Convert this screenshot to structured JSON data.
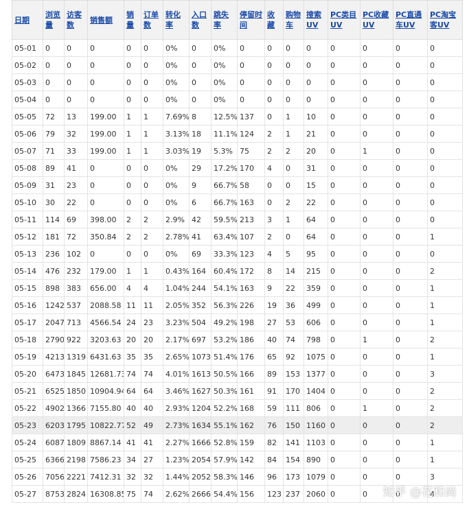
{
  "table": {
    "headers": [
      "日期",
      "浏览量",
      "访客数",
      "销售额",
      "销量",
      "订单数",
      "转化率",
      "入口数",
      "跳失率",
      "停留时间",
      "收藏",
      "购物车",
      "搜索UV",
      "PC类目UV",
      "PC收藏UV",
      "PC直通车UV",
      "PC淘宝客UV"
    ],
    "rows": [
      [
        "05-01",
        "0",
        "0",
        "0",
        "0",
        "0",
        "0%",
        "0",
        "0%",
        "0",
        "0",
        "0",
        "0",
        "0",
        "0",
        "0",
        "0"
      ],
      [
        "05-02",
        "0",
        "0",
        "0",
        "0",
        "0",
        "0%",
        "0",
        "0%",
        "0",
        "0",
        "0",
        "0",
        "0",
        "0",
        "0",
        "0"
      ],
      [
        "05-03",
        "0",
        "0",
        "0",
        "0",
        "0",
        "0%",
        "0",
        "0%",
        "0",
        "0",
        "0",
        "0",
        "0",
        "0",
        "0",
        "0"
      ],
      [
        "05-04",
        "0",
        "0",
        "0",
        "0",
        "0",
        "0%",
        "0",
        "0%",
        "0",
        "0",
        "0",
        "0",
        "0",
        "0",
        "0",
        "0"
      ],
      [
        "05-05",
        "72",
        "13",
        "199.00",
        "1",
        "1",
        "7.69%",
        "8",
        "12.5%",
        "137",
        "0",
        "1",
        "10",
        "0",
        "0",
        "0",
        "0"
      ],
      [
        "05-06",
        "79",
        "32",
        "199.00",
        "1",
        "1",
        "3.13%",
        "18",
        "11.1%",
        "124",
        "2",
        "1",
        "21",
        "0",
        "0",
        "0",
        "0"
      ],
      [
        "05-07",
        "71",
        "33",
        "199.00",
        "1",
        "1",
        "3.03%",
        "19",
        "5.3%",
        "75",
        "2",
        "2",
        "20",
        "0",
        "1",
        "0",
        "0"
      ],
      [
        "05-08",
        "89",
        "41",
        "0",
        "0",
        "0",
        "0%",
        "29",
        "17.2%",
        "170",
        "4",
        "0",
        "31",
        "0",
        "0",
        "0",
        "0"
      ],
      [
        "05-09",
        "31",
        "23",
        "0",
        "0",
        "0",
        "0%",
        "9",
        "66.7%",
        "58",
        "0",
        "0",
        "15",
        "0",
        "0",
        "0",
        "0"
      ],
      [
        "05-10",
        "30",
        "22",
        "0",
        "0",
        "0",
        "0%",
        "6",
        "66.7%",
        "163",
        "0",
        "2",
        "22",
        "0",
        "0",
        "0",
        "0"
      ],
      [
        "05-11",
        "114",
        "69",
        "398.00",
        "2",
        "2",
        "2.9%",
        "42",
        "59.5%",
        "213",
        "3",
        "1",
        "64",
        "0",
        "0",
        "0",
        "0"
      ],
      [
        "05-12",
        "181",
        "72",
        "350.84",
        "2",
        "2",
        "2.78%",
        "41",
        "63.4%",
        "107",
        "2",
        "0",
        "64",
        "0",
        "0",
        "0",
        "1"
      ],
      [
        "05-13",
        "236",
        "102",
        "0",
        "0",
        "0",
        "0%",
        "69",
        "33.3%",
        "123",
        "4",
        "5",
        "95",
        "0",
        "0",
        "0",
        "0"
      ],
      [
        "05-14",
        "476",
        "232",
        "179.00",
        "1",
        "1",
        "0.43%",
        "164",
        "60.4%",
        "172",
        "8",
        "14",
        "215",
        "0",
        "0",
        "0",
        "2"
      ],
      [
        "05-15",
        "898",
        "383",
        "656.00",
        "4",
        "4",
        "1.04%",
        "244",
        "54.1%",
        "163",
        "9",
        "22",
        "359",
        "0",
        "0",
        "0",
        "1"
      ],
      [
        "05-16",
        "1242",
        "537",
        "2088.58",
        "11",
        "11",
        "2.05%",
        "352",
        "56.3%",
        "226",
        "19",
        "36",
        "499",
        "0",
        "0",
        "0",
        "1"
      ],
      [
        "05-17",
        "2047",
        "713",
        "4566.54",
        "24",
        "23",
        "3.23%",
        "504",
        "49.2%",
        "198",
        "27",
        "53",
        "606",
        "0",
        "0",
        "0",
        "1"
      ],
      [
        "05-18",
        "2790",
        "922",
        "3203.63",
        "20",
        "20",
        "2.17%",
        "697",
        "53.2%",
        "186",
        "40",
        "74",
        "798",
        "0",
        "1",
        "0",
        "2"
      ],
      [
        "05-19",
        "4213",
        "1319",
        "6431.63",
        "35",
        "35",
        "2.65%",
        "1073",
        "51.4%",
        "176",
        "65",
        "92",
        "1075",
        "0",
        "0",
        "0",
        "1"
      ],
      [
        "05-20",
        "6473",
        "1845",
        "12681.73",
        "74",
        "74",
        "4.01%",
        "1613",
        "50.5%",
        "166",
        "89",
        "153",
        "1377",
        "0",
        "0",
        "0",
        "3"
      ],
      [
        "05-21",
        "6525",
        "1850",
        "10904.94",
        "64",
        "64",
        "3.46%",
        "1627",
        "50.3%",
        "161",
        "91",
        "170",
        "1404",
        "0",
        "0",
        "0",
        "2"
      ],
      [
        "05-22",
        "4902",
        "1366",
        "7155.80",
        "40",
        "40",
        "2.93%",
        "1204",
        "52.2%",
        "168",
        "59",
        "111",
        "806",
        "0",
        "1",
        "0",
        "2"
      ],
      [
        "05-23",
        "6203",
        "1795",
        "10822.77",
        "52",
        "49",
        "2.73%",
        "1634",
        "55.1%",
        "162",
        "76",
        "150",
        "1160",
        "0",
        "0",
        "0",
        "2"
      ],
      [
        "05-24",
        "6087",
        "1809",
        "8867.14",
        "41",
        "41",
        "2.27%",
        "1666",
        "52.8%",
        "159",
        "82",
        "141",
        "1103",
        "0",
        "0",
        "0",
        "1"
      ],
      [
        "05-25",
        "6366",
        "2198",
        "7586.23",
        "34",
        "27",
        "1.23%",
        "2054",
        "57.9%",
        "142",
        "84",
        "154",
        "890",
        "0",
        "0",
        "0",
        "1"
      ],
      [
        "05-26",
        "7056",
        "2221",
        "7412.31",
        "32",
        "32",
        "1.44%",
        "2052",
        "58.3%",
        "146",
        "96",
        "173",
        "1079",
        "0",
        "0",
        "0",
        "3"
      ],
      [
        "05-27",
        "8753",
        "2824",
        "16308.85",
        "75",
        "74",
        "2.62%",
        "2666",
        "54.4%",
        "156",
        "123",
        "237",
        "2060",
        "0",
        "0",
        "0",
        "4"
      ]
    ]
  },
  "watermark": "知乎 @花和尚"
}
